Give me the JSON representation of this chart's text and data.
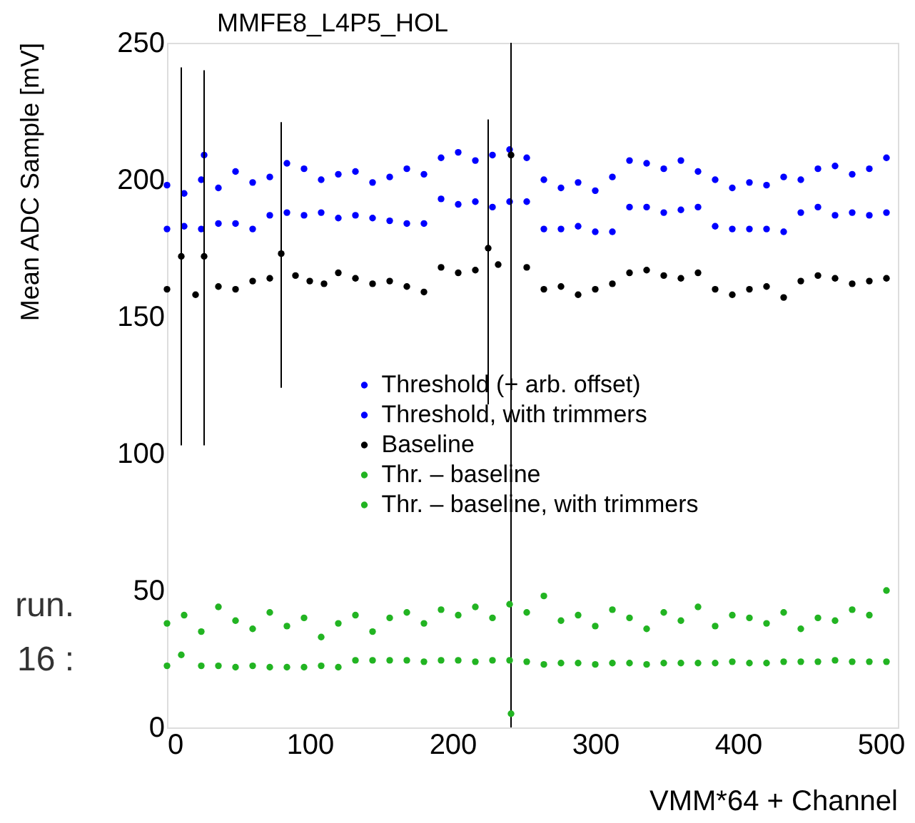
{
  "chart_data": {
    "type": "scatter",
    "title": "MMFE8_L4P5_HOL",
    "xlabel": "VMM*64 + Channel",
    "ylabel": "Mean ADC Sample [mV]",
    "xlim": [
      0,
      512
    ],
    "ylim": [
      0,
      250
    ],
    "xticks": [
      0,
      100,
      200,
      300,
      400,
      500
    ],
    "yticks": [
      0,
      50,
      100,
      150,
      200,
      250
    ],
    "grid": false,
    "legend": "center",
    "marker": "circle",
    "annotations": [
      "run.",
      "16 :"
    ],
    "series": [
      {
        "name": "Threshold (+ arb. offset)",
        "color": "#0000ff",
        "x": [
          0,
          12,
          24,
          36,
          48,
          60,
          72,
          84,
          96,
          108,
          120,
          132,
          144,
          156,
          168,
          180,
          192,
          204,
          216,
          228,
          240,
          252,
          264,
          276,
          288,
          300,
          312,
          324,
          336,
          348,
          360,
          372,
          384,
          396,
          408,
          420,
          432,
          444,
          456,
          468,
          480,
          492,
          504
        ],
        "values": [
          198,
          195,
          200,
          197,
          203,
          199,
          201,
          206,
          204,
          200,
          202,
          203,
          199,
          201,
          204,
          202,
          208,
          210,
          207,
          209,
          211,
          208,
          200,
          197,
          199,
          196,
          201,
          207,
          206,
          204,
          207,
          203,
          200,
          197,
          199,
          198,
          201,
          200,
          204,
          205,
          202,
          204,
          208
        ]
      },
      {
        "name": "Threshold, with trimmers",
        "color": "#0000ff",
        "x": [
          0,
          12,
          24,
          26,
          36,
          48,
          60,
          72,
          84,
          96,
          108,
          120,
          132,
          144,
          156,
          168,
          180,
          192,
          204,
          216,
          228,
          240,
          252,
          264,
          276,
          288,
          300,
          312,
          324,
          336,
          348,
          360,
          372,
          384,
          396,
          408,
          420,
          432,
          444,
          456,
          468,
          480,
          492,
          504
        ],
        "values": [
          182,
          183,
          182,
          209,
          184,
          184,
          182,
          187,
          188,
          187,
          188,
          186,
          187,
          186,
          185,
          184,
          184,
          193,
          191,
          192,
          190,
          192,
          192,
          182,
          182,
          183,
          181,
          181,
          190,
          190,
          188,
          189,
          190,
          183,
          182,
          182,
          182,
          181,
          188,
          190,
          187,
          188,
          187,
          188
        ]
      },
      {
        "name": "Baseline",
        "color": "#000000",
        "x": [
          0,
          10,
          20,
          26,
          36,
          48,
          60,
          72,
          80,
          90,
          100,
          110,
          120,
          132,
          144,
          156,
          168,
          180,
          192,
          204,
          216,
          225,
          232,
          241,
          252,
          264,
          276,
          288,
          300,
          312,
          324,
          336,
          348,
          360,
          372,
          384,
          396,
          408,
          420,
          432,
          444,
          456,
          468,
          480,
          492,
          504
        ],
        "values": [
          160,
          172,
          158,
          172,
          161,
          160,
          163,
          164,
          173,
          165,
          163,
          162,
          166,
          164,
          162,
          163,
          161,
          159,
          168,
          166,
          167,
          175,
          169,
          209,
          168,
          160,
          161,
          158,
          160,
          162,
          166,
          167,
          165,
          164,
          166,
          160,
          158,
          160,
          161,
          157,
          163,
          165,
          164,
          162,
          163,
          164
        ],
        "errors": [
          null,
          [
            103,
            241
          ],
          null,
          [
            103,
            240
          ],
          null,
          null,
          null,
          null,
          [
            124,
            221
          ],
          null,
          null,
          null,
          null,
          null,
          null,
          null,
          null,
          null,
          null,
          null,
          null,
          [
            118,
            222
          ],
          null,
          [
            0,
            250
          ],
          null,
          null,
          null,
          null,
          null,
          null,
          null,
          null,
          null,
          null,
          null,
          null,
          null,
          null,
          null,
          null,
          null,
          null,
          null,
          null,
          null,
          null
        ]
      },
      {
        "name": "Thr. – baseline",
        "color": "#22b422",
        "x": [
          0,
          12,
          24,
          36,
          48,
          60,
          72,
          84,
          96,
          108,
          120,
          132,
          144,
          156,
          168,
          180,
          192,
          204,
          216,
          228,
          240,
          252,
          264,
          276,
          288,
          300,
          312,
          324,
          336,
          348,
          360,
          372,
          384,
          396,
          408,
          420,
          432,
          444,
          456,
          468,
          480,
          492,
          504
        ],
        "values": [
          38,
          41,
          35,
          44,
          39,
          36,
          42,
          37,
          40,
          33,
          38,
          41,
          35,
          40,
          42,
          38,
          43,
          41,
          44,
          40,
          45,
          42,
          48,
          39,
          41,
          37,
          43,
          40,
          36,
          42,
          39,
          44,
          37,
          41,
          40,
          38,
          42,
          36,
          40,
          39,
          43,
          41,
          50
        ]
      },
      {
        "name": "Thr. – baseline, with trimmers",
        "color": "#22b422",
        "x": [
          0,
          10,
          24,
          36,
          48,
          60,
          72,
          84,
          96,
          108,
          120,
          132,
          144,
          156,
          168,
          180,
          192,
          204,
          216,
          228,
          240,
          241,
          252,
          264,
          276,
          288,
          300,
          312,
          324,
          336,
          348,
          360,
          372,
          384,
          396,
          408,
          420,
          432,
          444,
          456,
          468,
          480,
          492,
          504
        ],
        "values": [
          22.5,
          26.5,
          22.5,
          22.5,
          22,
          22.5,
          22,
          22,
          22,
          22.5,
          22,
          24.5,
          24.5,
          24.5,
          24.5,
          24,
          24.5,
          24.5,
          24,
          24.5,
          24.5,
          5,
          24,
          23,
          23.5,
          23.5,
          23,
          23.5,
          23.5,
          23,
          23.5,
          23.5,
          23.5,
          23.5,
          24,
          23.5,
          23.5,
          24,
          24,
          24,
          24.5,
          24,
          24,
          24
        ]
      }
    ]
  }
}
